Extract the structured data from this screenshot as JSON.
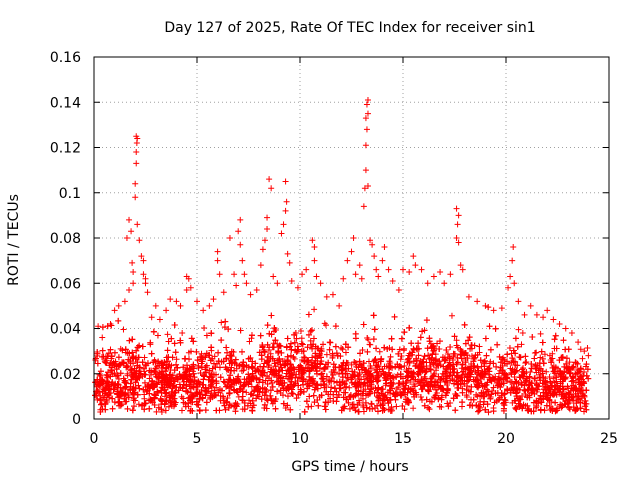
{
  "chart_data": {
    "type": "scatter",
    "title": "Day 127 of 2025, Rate Of TEC Index for receiver sin1",
    "xlabel": "GPS time / hours",
    "ylabel": "ROTI / TECUs",
    "xlim": [
      0,
      25
    ],
    "ylim": [
      0,
      0.16
    ],
    "x_ticks": [
      0,
      5,
      10,
      15,
      20,
      25
    ],
    "x_tick_labels": [
      "0",
      "5",
      "10",
      "15",
      "20",
      "25"
    ],
    "y_ticks": [
      0,
      0.02,
      0.04,
      0.06,
      0.08,
      0.1,
      0.12,
      0.14,
      0.16
    ],
    "y_tick_labels": [
      "0",
      "0.02",
      "0.04",
      "0.06",
      "0.08",
      "0.1",
      "0.12",
      "0.14",
      "0.16"
    ],
    "grid": true,
    "marker": "+",
    "color": "#ff0000",
    "series": [
      {
        "name": "ROTI",
        "points": [
          [
            0.2,
            0.041
          ],
          [
            0.4,
            0.036
          ],
          [
            0.8,
            0.042
          ],
          [
            1.0,
            0.048
          ],
          [
            1.2,
            0.05
          ],
          [
            1.5,
            0.052
          ],
          [
            1.7,
            0.057
          ],
          [
            1.9,
            0.06
          ],
          [
            1.9,
            0.065
          ],
          [
            1.6,
            0.08
          ],
          [
            1.7,
            0.088
          ],
          [
            1.8,
            0.083
          ],
          [
            1.85,
            0.069
          ],
          [
            2.0,
            0.098
          ],
          [
            2.0,
            0.104
          ],
          [
            2.05,
            0.113
          ],
          [
            2.05,
            0.118
          ],
          [
            2.08,
            0.122
          ],
          [
            2.1,
            0.124
          ],
          [
            2.05,
            0.125
          ],
          [
            2.1,
            0.086
          ],
          [
            2.2,
            0.079
          ],
          [
            2.3,
            0.072
          ],
          [
            2.4,
            0.07
          ],
          [
            2.4,
            0.064
          ],
          [
            2.5,
            0.062
          ],
          [
            2.5,
            0.06
          ],
          [
            2.6,
            0.056
          ],
          [
            2.8,
            0.045
          ],
          [
            3.0,
            0.05
          ],
          [
            3.2,
            0.044
          ],
          [
            3.5,
            0.048
          ],
          [
            3.7,
            0.053
          ],
          [
            4.0,
            0.052
          ],
          [
            4.2,
            0.05
          ],
          [
            4.5,
            0.063
          ],
          [
            4.6,
            0.062
          ],
          [
            4.5,
            0.057
          ],
          [
            4.7,
            0.058
          ],
          [
            5.0,
            0.052
          ],
          [
            5.3,
            0.048
          ],
          [
            5.6,
            0.05
          ],
          [
            5.8,
            0.053
          ],
          [
            6.0,
            0.07
          ],
          [
            6.0,
            0.074
          ],
          [
            6.1,
            0.064
          ],
          [
            6.3,
            0.056
          ],
          [
            6.6,
            0.08
          ],
          [
            6.8,
            0.064
          ],
          [
            6.9,
            0.059
          ],
          [
            7.0,
            0.083
          ],
          [
            7.1,
            0.088
          ],
          [
            7.1,
            0.077
          ],
          [
            7.2,
            0.07
          ],
          [
            7.3,
            0.064
          ],
          [
            7.4,
            0.06
          ],
          [
            7.6,
            0.055
          ],
          [
            7.9,
            0.057
          ],
          [
            8.1,
            0.068
          ],
          [
            8.2,
            0.075
          ],
          [
            8.3,
            0.079
          ],
          [
            8.4,
            0.084
          ],
          [
            8.4,
            0.089
          ],
          [
            8.5,
            0.106
          ],
          [
            8.6,
            0.102
          ],
          [
            8.7,
            0.063
          ],
          [
            8.9,
            0.06
          ],
          [
            9.1,
            0.082
          ],
          [
            9.2,
            0.086
          ],
          [
            9.3,
            0.092
          ],
          [
            9.35,
            0.096
          ],
          [
            9.3,
            0.105
          ],
          [
            9.4,
            0.073
          ],
          [
            9.5,
            0.069
          ],
          [
            9.6,
            0.061
          ],
          [
            9.9,
            0.058
          ],
          [
            10.1,
            0.064
          ],
          [
            10.3,
            0.066
          ],
          [
            10.6,
            0.079
          ],
          [
            10.7,
            0.076
          ],
          [
            10.7,
            0.07
          ],
          [
            10.8,
            0.063
          ],
          [
            11.0,
            0.06
          ],
          [
            11.3,
            0.054
          ],
          [
            11.6,
            0.055
          ],
          [
            11.9,
            0.05
          ],
          [
            12.1,
            0.062
          ],
          [
            12.3,
            0.07
          ],
          [
            12.5,
            0.074
          ],
          [
            12.6,
            0.08
          ],
          [
            12.7,
            0.064
          ],
          [
            12.9,
            0.068
          ],
          [
            13.0,
            0.062
          ],
          [
            13.1,
            0.094
          ],
          [
            13.15,
            0.102
          ],
          [
            13.2,
            0.11
          ],
          [
            13.2,
            0.121
          ],
          [
            13.25,
            0.128
          ],
          [
            13.2,
            0.133
          ],
          [
            13.3,
            0.135
          ],
          [
            13.25,
            0.139
          ],
          [
            13.3,
            0.141
          ],
          [
            13.3,
            0.103
          ],
          [
            13.4,
            0.079
          ],
          [
            13.5,
            0.077
          ],
          [
            13.6,
            0.072
          ],
          [
            13.7,
            0.066
          ],
          [
            13.8,
            0.063
          ],
          [
            14.0,
            0.07
          ],
          [
            14.1,
            0.076
          ],
          [
            14.3,
            0.066
          ],
          [
            14.5,
            0.061
          ],
          [
            14.8,
            0.057
          ],
          [
            15.0,
            0.066
          ],
          [
            15.3,
            0.065
          ],
          [
            15.5,
            0.072
          ],
          [
            15.6,
            0.068
          ],
          [
            15.9,
            0.066
          ],
          [
            16.2,
            0.06
          ],
          [
            16.5,
            0.063
          ],
          [
            16.8,
            0.065
          ],
          [
            17.0,
            0.06
          ],
          [
            17.3,
            0.064
          ],
          [
            17.6,
            0.08
          ],
          [
            17.65,
            0.086
          ],
          [
            17.7,
            0.09
          ],
          [
            17.6,
            0.093
          ],
          [
            17.7,
            0.078
          ],
          [
            17.8,
            0.068
          ],
          [
            17.9,
            0.066
          ],
          [
            18.2,
            0.054
          ],
          [
            18.6,
            0.052
          ],
          [
            19.0,
            0.05
          ],
          [
            19.4,
            0.048
          ],
          [
            19.8,
            0.049
          ],
          [
            20.1,
            0.058
          ],
          [
            20.2,
            0.063
          ],
          [
            20.3,
            0.07
          ],
          [
            20.35,
            0.076
          ],
          [
            20.4,
            0.06
          ],
          [
            20.6,
            0.052
          ],
          [
            20.9,
            0.046
          ],
          [
            21.2,
            0.05
          ],
          [
            21.5,
            0.046
          ],
          [
            21.8,
            0.045
          ],
          [
            22.0,
            0.048
          ],
          [
            22.3,
            0.044
          ],
          [
            22.6,
            0.042
          ],
          [
            22.9,
            0.04
          ],
          [
            23.2,
            0.038
          ],
          [
            23.5,
            0.034
          ],
          [
            23.8,
            0.03
          ],
          [
            24.0,
            0.028
          ]
        ]
      }
    ]
  }
}
